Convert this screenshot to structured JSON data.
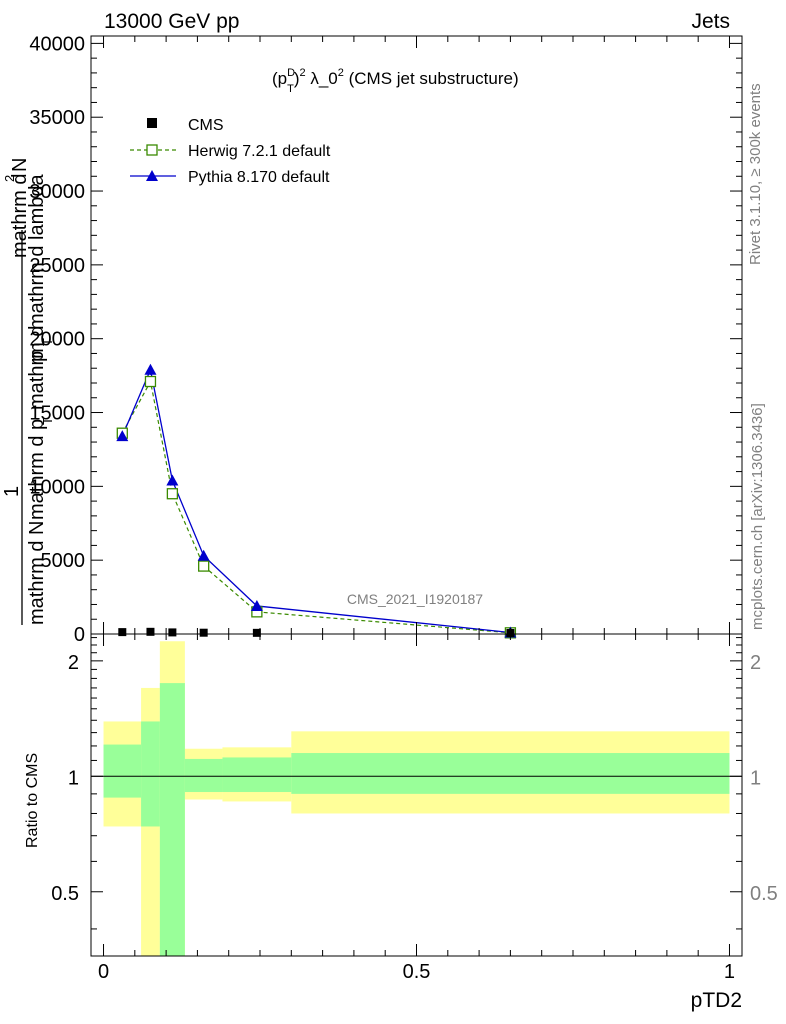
{
  "header": {
    "left": "13000 GeV pp",
    "right": "Jets"
  },
  "side_labels": {
    "rivet": "Rivet 3.1.10, ≥ 300k events",
    "mcplots": "mcplots.cern.ch [arXiv:1306.3436]"
  },
  "chart_data": [
    {
      "type": "line",
      "title": "(p_T^D)^2 λ_0^2 (CMS jet substructure)",
      "title_parts": {
        "p": "(p",
        "sup_D": "D",
        "sub_T": "T",
        "paren": ")",
        "sup2": "2",
        "mid": " λ_0",
        "sup2b": "2",
        "tail": " (CMS jet substructure)"
      },
      "ylabel_lines": [
        "1",
        "mathrm d N",
        "mathrm d p_T mathrm d p_T mathrm d lambda",
        "mathrm d^2N"
      ],
      "ylabel_parts": {
        "one": "1",
        "dn": "mathrm d N",
        "den_a": "mathrm d p",
        "den_b": "mathrm d",
        "den_c": "p",
        "den_d": "mathrm d lambda",
        "sub_T": "T",
        "num": "mathrm d",
        "num_sup": "2",
        "num_end": "N"
      },
      "xlim": [
        -0.02,
        1.02
      ],
      "ylim": [
        0,
        40500
      ],
      "yticks": [
        0,
        5000,
        10000,
        15000,
        20000,
        25000,
        30000,
        35000,
        40000
      ],
      "ytick_labels": [
        "0",
        "5000",
        "10000",
        "15000",
        "20000",
        "25000",
        "30000",
        "35000",
        "40000"
      ],
      "watermark": "CMS_2021_I1920187",
      "legend_position": "top-left",
      "series": [
        {
          "name": "CMS",
          "style": "square-filled",
          "color": "#000000",
          "x": [
            0.03,
            0.075,
            0.11,
            0.16,
            0.245,
            0.65
          ],
          "y": [
            60,
            80,
            40,
            20,
            10,
            0
          ]
        },
        {
          "name": "Herwig 7.2.1 default",
          "style": "square-open-dashed",
          "color": "#3a8a00",
          "x": [
            0.03,
            0.075,
            0.11,
            0.16,
            0.245,
            0.65
          ],
          "y": [
            13600,
            17100,
            9500,
            4600,
            1500,
            80
          ]
        },
        {
          "name": "Pythia 8.170 default",
          "style": "triangle-solid",
          "color": "#0000cc",
          "x": [
            0.03,
            0.075,
            0.11,
            0.16,
            0.245,
            0.65
          ],
          "y": [
            13400,
            17900,
            10400,
            5300,
            1900,
            100
          ],
          "yerr": [
            200,
            350,
            200,
            120,
            60,
            10
          ]
        }
      ]
    },
    {
      "type": "area",
      "ylabel": "Ratio to CMS",
      "xlabel": "pTD2",
      "xlim": [
        -0.02,
        1.02
      ],
      "xticks": [
        0,
        0.5,
        1
      ],
      "xtick_labels": [
        "0",
        "0.5",
        "1"
      ],
      "ylim": [
        0.34,
        2.35
      ],
      "yticks": [
        0.5,
        1,
        2
      ],
      "ytick_labels": [
        "0.5",
        "1",
        "2"
      ],
      "reference_line": 1,
      "bins": [
        {
          "x0": 0.0,
          "x1": 0.06,
          "green": [
            0.88,
            1.21
          ],
          "yellow": [
            0.74,
            1.39
          ]
        },
        {
          "x0": 0.06,
          "x1": 0.09,
          "green": [
            0.74,
            1.39
          ],
          "yellow": [
            0.3,
            1.7
          ]
        },
        {
          "x0": 0.09,
          "x1": 0.13,
          "green": [
            0.3,
            1.75
          ],
          "yellow": [
            0.3,
            2.25
          ]
        },
        {
          "x0": 0.13,
          "x1": 0.19,
          "green": [
            0.91,
            1.11
          ],
          "yellow": [
            0.87,
            1.18
          ]
        },
        {
          "x0": 0.19,
          "x1": 0.3,
          "green": [
            0.91,
            1.12
          ],
          "yellow": [
            0.86,
            1.19
          ]
        },
        {
          "x0": 0.3,
          "x1": 1.0,
          "green": [
            0.9,
            1.15
          ],
          "yellow": [
            0.8,
            1.31
          ]
        }
      ]
    }
  ]
}
